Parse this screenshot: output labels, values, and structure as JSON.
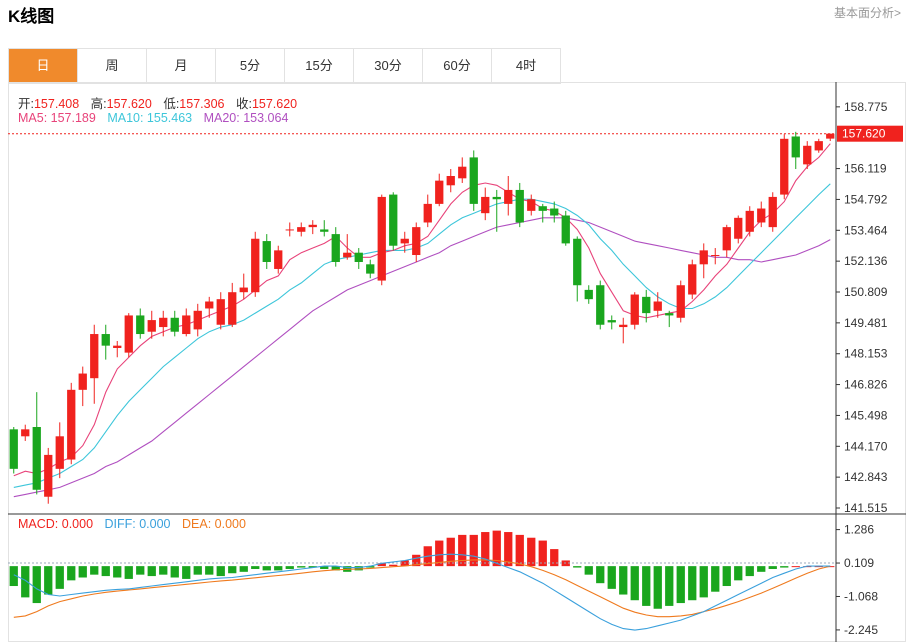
{
  "page": {
    "title": "K线图",
    "top_link": "基本面分析>"
  },
  "tabs": [
    {
      "label": "日",
      "active": true
    },
    {
      "label": "周",
      "active": false
    },
    {
      "label": "月",
      "active": false
    },
    {
      "label": "5分",
      "active": false
    },
    {
      "label": "15分",
      "active": false
    },
    {
      "label": "30分",
      "active": false
    },
    {
      "label": "60分",
      "active": false
    },
    {
      "label": "4时",
      "active": false
    }
  ],
  "ohlc_info": {
    "open_label": "开:",
    "open": "157.408",
    "high_label": "高:",
    "high": "157.620",
    "low_label": "低:",
    "low": "157.306",
    "close_label": "收:",
    "close": "157.620"
  },
  "ma_info": {
    "ma5": "MA5: 157.189",
    "ma10": "MA10: 155.463",
    "ma20": "MA20: 153.064"
  },
  "macd_info": {
    "macd": "MACD: 0.000",
    "diff": "DIFF: 0.000",
    "dea": "DEA: 0.000"
  },
  "colors": {
    "up": "#f0221e",
    "down": "#1aa61e",
    "ma5": "#e8437a",
    "ma10": "#3dc6da",
    "ma20": "#b04fc0",
    "diff": "#3aa0dc",
    "dea": "#ef7a1e",
    "active_tab": "#f08a2c"
  },
  "chart_data": [
    {
      "type": "candlestick",
      "y_ticks": [
        158.775,
        156.119,
        154.792,
        153.464,
        152.136,
        150.809,
        149.481,
        148.153,
        146.826,
        145.498,
        144.17,
        142.843,
        141.515
      ],
      "ylim": [
        141.3,
        159.5
      ],
      "last_price": 157.62,
      "candles": [
        [
          144.9,
          143.2,
          145.0,
          143.0
        ],
        [
          144.6,
          144.9,
          145.1,
          144.4
        ],
        [
          145.0,
          142.3,
          146.5,
          142.1
        ],
        [
          142.0,
          143.8,
          144.1,
          141.7
        ],
        [
          143.2,
          144.6,
          145.2,
          142.8
        ],
        [
          143.6,
          146.6,
          146.9,
          143.4
        ],
        [
          146.6,
          147.3,
          147.6,
          145.9
        ],
        [
          147.1,
          149.0,
          149.4,
          146.0
        ],
        [
          149.0,
          148.5,
          149.4,
          147.9
        ],
        [
          148.4,
          148.5,
          148.7,
          148.0
        ],
        [
          148.2,
          149.8,
          149.9,
          148.0
        ],
        [
          149.8,
          149.0,
          150.1,
          148.8
        ],
        [
          149.1,
          149.6,
          150.0,
          148.8
        ],
        [
          149.3,
          149.7,
          150.0,
          148.9
        ],
        [
          149.7,
          149.1,
          150.0,
          148.9
        ],
        [
          149.0,
          149.8,
          150.1,
          148.9
        ],
        [
          149.2,
          150.0,
          150.3,
          148.9
        ],
        [
          150.1,
          150.4,
          150.6,
          149.7
        ],
        [
          149.4,
          150.5,
          150.8,
          149.2
        ],
        [
          149.4,
          150.8,
          151.2,
          149.3
        ],
        [
          150.8,
          151.0,
          151.6,
          150.5
        ],
        [
          150.8,
          153.1,
          153.4,
          150.6
        ],
        [
          153.0,
          152.1,
          153.3,
          151.8
        ],
        [
          151.8,
          152.6,
          152.8,
          151.6
        ],
        [
          153.5,
          153.5,
          153.8,
          153.2
        ],
        [
          153.4,
          153.6,
          153.8,
          153.2
        ],
        [
          153.6,
          153.7,
          153.9,
          153.3
        ],
        [
          153.5,
          153.4,
          153.9,
          153.2
        ],
        [
          153.3,
          152.1,
          153.6,
          151.9
        ],
        [
          152.3,
          152.5,
          153.3,
          152.2
        ],
        [
          152.5,
          152.1,
          152.7,
          151.8
        ],
        [
          152.0,
          151.6,
          152.2,
          151.4
        ],
        [
          151.3,
          154.9,
          155.0,
          151.1
        ],
        [
          155.0,
          152.8,
          155.1,
          152.6
        ],
        [
          152.9,
          153.1,
          153.4,
          152.5
        ],
        [
          152.4,
          153.6,
          153.8,
          152.1
        ],
        [
          153.8,
          154.6,
          155.0,
          153.6
        ],
        [
          154.6,
          155.6,
          155.9,
          154.5
        ],
        [
          155.4,
          155.8,
          156.1,
          155.1
        ],
        [
          155.7,
          156.2,
          156.6,
          155.5
        ],
        [
          156.6,
          154.6,
          156.9,
          154.3
        ],
        [
          154.2,
          154.9,
          155.3,
          153.9
        ],
        [
          154.9,
          154.8,
          155.2,
          153.4
        ],
        [
          154.6,
          155.2,
          155.8,
          154.1
        ],
        [
          155.2,
          153.8,
          155.5,
          153.6
        ],
        [
          154.3,
          154.8,
          155.0,
          154.1
        ],
        [
          154.5,
          154.3,
          154.6,
          153.8
        ],
        [
          154.4,
          154.1,
          154.7,
          153.8
        ],
        [
          154.1,
          152.9,
          154.3,
          152.8
        ],
        [
          153.1,
          151.1,
          153.2,
          150.4
        ],
        [
          150.9,
          150.5,
          151.1,
          150.3
        ],
        [
          151.1,
          149.4,
          151.3,
          149.2
        ],
        [
          149.6,
          149.5,
          149.8,
          149.2
        ],
        [
          149.3,
          149.4,
          149.7,
          148.6
        ],
        [
          149.4,
          150.7,
          150.8,
          149.2
        ],
        [
          150.6,
          149.9,
          150.9,
          149.5
        ],
        [
          150.0,
          150.4,
          150.8,
          149.7
        ],
        [
          149.9,
          149.8,
          150.0,
          149.3
        ],
        [
          149.7,
          151.1,
          151.3,
          149.5
        ],
        [
          150.7,
          152.0,
          152.2,
          150.5
        ],
        [
          152.0,
          152.6,
          152.9,
          151.4
        ],
        [
          152.4,
          152.4,
          152.7,
          152.0
        ],
        [
          152.6,
          153.6,
          153.7,
          152.3
        ],
        [
          153.1,
          154.0,
          154.1,
          152.9
        ],
        [
          153.4,
          154.3,
          154.5,
          153.2
        ],
        [
          153.8,
          154.4,
          154.7,
          153.6
        ],
        [
          153.6,
          154.9,
          155.1,
          153.4
        ],
        [
          155.0,
          157.4,
          157.6,
          154.8
        ],
        [
          157.5,
          156.6,
          157.7,
          156.1
        ],
        [
          156.3,
          157.1,
          157.3,
          156.1
        ],
        [
          156.9,
          157.3,
          157.4,
          156.8
        ],
        [
          157.408,
          157.62,
          157.62,
          157.306
        ]
      ],
      "ma5": [
        142.9,
        143.1,
        143.0,
        143.2,
        143.5,
        143.7,
        144.2,
        145.1,
        146.5,
        147.5,
        148.0,
        148.5,
        148.9,
        149.1,
        149.3,
        149.4,
        149.6,
        149.8,
        150.0,
        150.2,
        150.5,
        150.9,
        151.3,
        151.5,
        152.2,
        152.5,
        152.7,
        152.9,
        153.2,
        152.7,
        152.3,
        152.3,
        152.5,
        152.6,
        152.8,
        152.9,
        153.2,
        153.9,
        154.6,
        155.1,
        155.4,
        155.5,
        155.4,
        155.1,
        154.8,
        154.7,
        154.4,
        154.3,
        154.0,
        153.5,
        152.7,
        151.6,
        150.8,
        150.0,
        149.8,
        149.7,
        149.8,
        149.9,
        150.0,
        150.4,
        150.9,
        151.5,
        152.0,
        152.7,
        153.4,
        153.9,
        154.2,
        154.7,
        155.6,
        156.2,
        156.6,
        157.189
      ],
      "ma10": [
        142.4,
        142.5,
        142.6,
        142.8,
        143.0,
        143.3,
        143.6,
        144.1,
        144.8,
        145.5,
        146.1,
        146.6,
        147.1,
        147.6,
        148.0,
        148.4,
        148.8,
        149.1,
        149.3,
        149.4,
        149.6,
        149.9,
        150.2,
        150.5,
        150.9,
        151.2,
        151.6,
        152.0,
        152.2,
        152.3,
        152.4,
        152.5,
        152.6,
        152.6,
        152.6,
        152.7,
        152.9,
        153.3,
        153.7,
        154.0,
        154.2,
        154.4,
        154.6,
        154.7,
        154.8,
        154.8,
        154.7,
        154.6,
        154.4,
        154.1,
        153.7,
        153.1,
        152.6,
        152.0,
        151.5,
        151.0,
        150.6,
        150.3,
        150.1,
        150.1,
        150.3,
        150.6,
        151.0,
        151.5,
        152.0,
        152.5,
        153.0,
        153.5,
        154.0,
        154.5,
        155.0,
        155.463
      ],
      "ma20": [
        142.0,
        142.1,
        142.2,
        142.3,
        142.4,
        142.6,
        142.8,
        143.0,
        143.3,
        143.5,
        143.8,
        144.1,
        144.4,
        144.8,
        145.2,
        145.6,
        146.0,
        146.4,
        146.8,
        147.2,
        147.6,
        148.0,
        148.4,
        148.8,
        149.2,
        149.6,
        150.0,
        150.3,
        150.6,
        150.9,
        151.1,
        151.3,
        151.5,
        151.7,
        151.9,
        152.1,
        152.3,
        152.5,
        152.8,
        153.0,
        153.2,
        153.4,
        153.6,
        153.7,
        153.8,
        153.9,
        154.0,
        154.0,
        154.0,
        153.9,
        153.8,
        153.6,
        153.4,
        153.2,
        153.0,
        152.9,
        152.8,
        152.7,
        152.6,
        152.5,
        152.4,
        152.3,
        152.3,
        152.2,
        152.2,
        152.1,
        152.2,
        152.3,
        152.4,
        152.6,
        152.8,
        153.064
      ]
    },
    {
      "type": "bar",
      "y_ticks": [
        1.286,
        0.109,
        -1.068,
        -2.245
      ],
      "ylim": [
        -2.6,
        1.8
      ],
      "macd": [
        -0.7,
        -1.1,
        -1.3,
        -1.0,
        -0.8,
        -0.5,
        -0.4,
        -0.3,
        -0.35,
        -0.4,
        -0.45,
        -0.3,
        -0.35,
        -0.3,
        -0.4,
        -0.45,
        -0.3,
        -0.3,
        -0.35,
        -0.25,
        -0.2,
        -0.1,
        -0.15,
        -0.15,
        -0.1,
        -0.05,
        -0.05,
        -0.1,
        -0.15,
        -0.2,
        -0.15,
        -0.05,
        0.1,
        0.05,
        0.2,
        0.4,
        0.7,
        0.9,
        1.0,
        1.1,
        1.1,
        1.2,
        1.25,
        1.2,
        1.1,
        1.0,
        0.9,
        0.6,
        0.2,
        -0.05,
        -0.3,
        -0.6,
        -0.8,
        -1.0,
        -1.2,
        -1.4,
        -1.5,
        -1.4,
        -1.3,
        -1.2,
        -1.1,
        -0.9,
        -0.7,
        -0.5,
        -0.35,
        -0.2,
        -0.1,
        -0.05,
        0.0,
        0.0,
        0.0,
        0.0
      ],
      "diff": [
        -0.3,
        -0.5,
        -0.8,
        -1.0,
        -1.05,
        -1.0,
        -0.95,
        -0.9,
        -0.85,
        -0.82,
        -0.8,
        -0.75,
        -0.7,
        -0.65,
        -0.6,
        -0.55,
        -0.5,
        -0.45,
        -0.42,
        -0.4,
        -0.35,
        -0.3,
        -0.25,
        -0.2,
        -0.15,
        -0.1,
        -0.05,
        0.0,
        0.0,
        -0.05,
        -0.05,
        0.0,
        0.1,
        0.15,
        0.2,
        0.28,
        0.35,
        0.4,
        0.42,
        0.4,
        0.35,
        0.25,
        0.1,
        -0.05,
        -0.2,
        -0.4,
        -0.6,
        -0.85,
        -1.1,
        -1.35,
        -1.6,
        -1.85,
        -2.05,
        -2.2,
        -2.25,
        -2.2,
        -2.1,
        -2.0,
        -1.9,
        -1.75,
        -1.6,
        -1.4,
        -1.2,
        -1.0,
        -0.8,
        -0.6,
        -0.4,
        -0.25,
        -0.1,
        0.0,
        0.0,
        0.0
      ],
      "dea": [
        -1.8,
        -1.75,
        -1.6,
        -1.4,
        -1.25,
        -1.15,
        -1.05,
        -0.98,
        -0.92,
        -0.88,
        -0.84,
        -0.8,
        -0.76,
        -0.72,
        -0.68,
        -0.64,
        -0.6,
        -0.56,
        -0.52,
        -0.49,
        -0.45,
        -0.41,
        -0.37,
        -0.33,
        -0.29,
        -0.25,
        -0.2,
        -0.16,
        -0.13,
        -0.11,
        -0.1,
        -0.08,
        -0.05,
        -0.02,
        0.01,
        0.05,
        0.09,
        0.13,
        0.17,
        0.2,
        0.22,
        0.22,
        0.2,
        0.15,
        0.08,
        -0.02,
        -0.15,
        -0.3,
        -0.48,
        -0.68,
        -0.88,
        -1.08,
        -1.28,
        -1.48,
        -1.62,
        -1.72,
        -1.78,
        -1.78,
        -1.75,
        -1.7,
        -1.6,
        -1.5,
        -1.38,
        -1.25,
        -1.1,
        -0.95,
        -0.78,
        -0.6,
        -0.42,
        -0.25,
        -0.1,
        0.0
      ]
    }
  ]
}
